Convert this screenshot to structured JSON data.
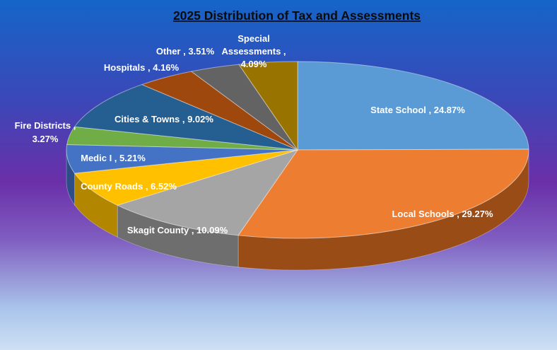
{
  "chart_data": {
    "type": "pie",
    "title": "2025 Distribution of Tax and Assessments",
    "legend": "none",
    "slices": [
      {
        "name": "State School",
        "value": 24.87,
        "label": "State School , 24.87%",
        "color": "#5b9bd5",
        "side": "#3d6f9e"
      },
      {
        "name": "Local Schools",
        "value": 29.27,
        "label": "Local Schools , 29.27%",
        "color": "#ed7d31",
        "side": "#9a4c17"
      },
      {
        "name": "Skagit County",
        "value": 10.09,
        "label": "Skagit County , 10.09%",
        "color": "#a5a5a5",
        "side": "#6e6e6e"
      },
      {
        "name": "County Roads",
        "value": 6.52,
        "label": "County Roads , 6.52%",
        "color": "#ffc000",
        "side": "#b38600"
      },
      {
        "name": "Medic I",
        "value": 5.21,
        "label": "Medic I , 5.21%",
        "color": "#4472c4",
        "side": "#2c4d87"
      },
      {
        "name": "Fire Districts",
        "value": 3.27,
        "label": "Fire Districts , 3.27%",
        "label_lines": [
          "Fire Districts ,",
          "3.27%"
        ],
        "color": "#70ad47",
        "side": "#4a7a2c"
      },
      {
        "name": "Cities & Towns",
        "value": 9.02,
        "label": "Cities & Towns , 9.02%",
        "color": "#255e91",
        "side": "#173d5f"
      },
      {
        "name": "Hospitals",
        "value": 4.16,
        "label": "Hospitals , 4.16%",
        "color": "#9e480e",
        "side": "#6a2f08"
      },
      {
        "name": "Other",
        "value": 3.51,
        "label": "Other , 3.51%",
        "color": "#636363",
        "side": "#404040"
      },
      {
        "name": "Special Assessments",
        "value": 4.09,
        "label": "Special Assessments , 4.09%",
        "label_lines": [
          "Special",
          "Assessments ,",
          "4.09%"
        ],
        "color": "#997300",
        "side": "#664c00"
      }
    ]
  }
}
